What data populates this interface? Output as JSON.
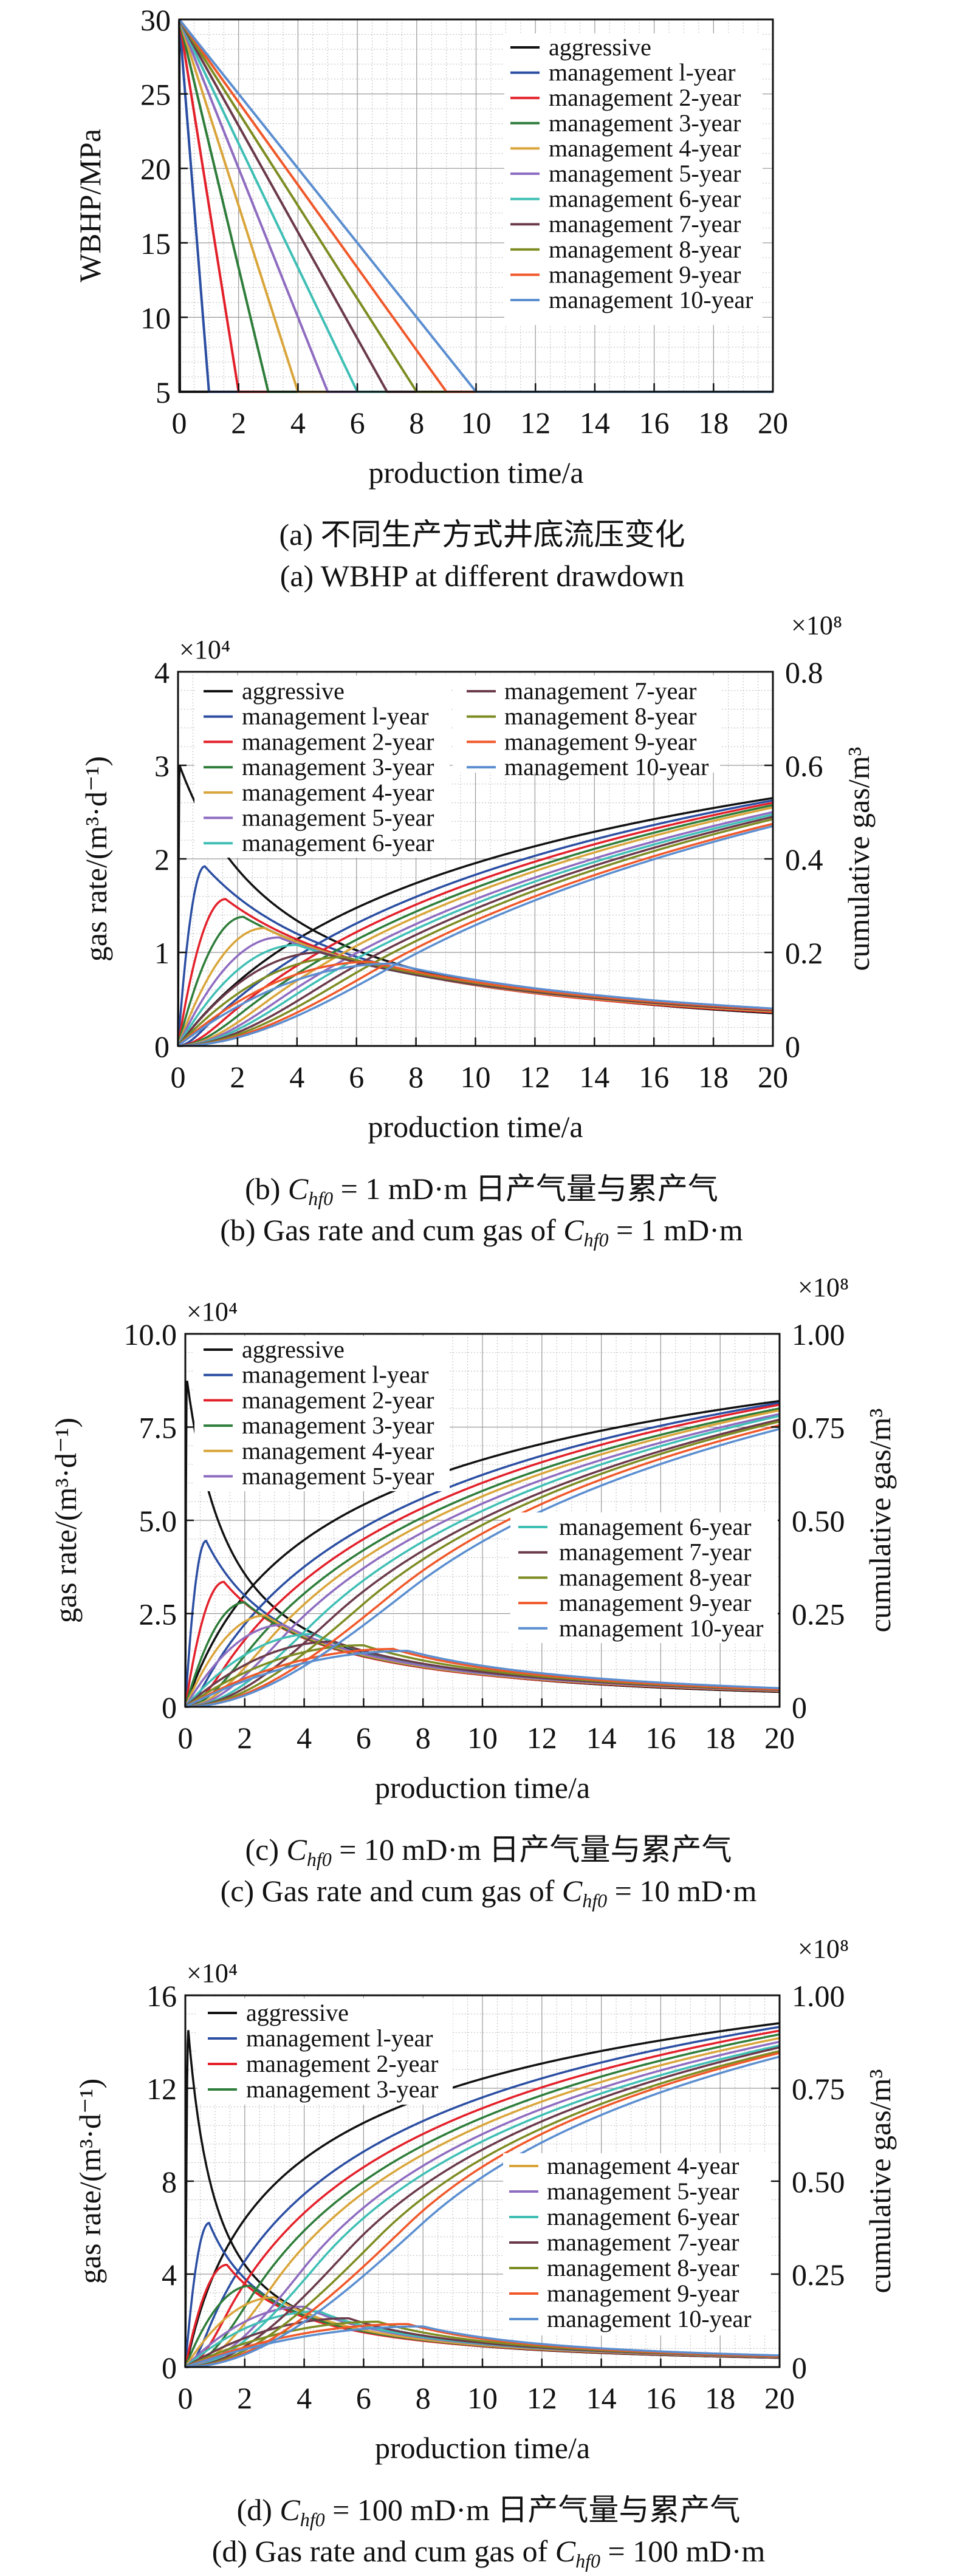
{
  "series_colors": [
    "#111111",
    "#2b4ea2",
    "#e3202a",
    "#2e7d3a",
    "#d9a53a",
    "#8e6cc0",
    "#3fbfb5",
    "#6b3a4a",
    "#7d8c22",
    "#f0582a",
    "#5b8ed0"
  ],
  "series_names": [
    "aggressive",
    "management l-year",
    "management 2-year",
    "management 3-year",
    "management 4-year",
    "management 5-year",
    "management 6-year",
    "management 7-year",
    "management 8-year",
    "management 9-year",
    "management 10-year"
  ],
  "chart_data": [
    {
      "type": "line",
      "xlabel": "production time/a",
      "ylabel": "WBHP/MPa",
      "xlim": [
        0,
        20
      ],
      "xticks": [
        "0",
        "2",
        "4",
        "6",
        "8",
        "10",
        "12",
        "14",
        "16",
        "18",
        "20"
      ],
      "ylim": [
        5,
        30
      ],
      "yticks": [
        "5",
        "10",
        "15",
        "20",
        "25",
        "30"
      ],
      "grid": true,
      "legend": "top-right",
      "caption_cn": "(a) 不同生产方式井底流压变化",
      "caption_en": "(a) WBHP at different drawdown",
      "series": [
        {
          "name": "aggressive",
          "points": [
            [
              0,
              30
            ],
            [
              0.02,
              5
            ],
            [
              20,
              5
            ]
          ]
        },
        {
          "name": "management l-year",
          "points": [
            [
              0,
              30
            ],
            [
              1,
              5
            ],
            [
              20,
              5
            ]
          ]
        },
        {
          "name": "management 2-year",
          "points": [
            [
              0,
              30
            ],
            [
              2,
              5
            ],
            [
              20,
              5
            ]
          ]
        },
        {
          "name": "management 3-year",
          "points": [
            [
              0,
              30
            ],
            [
              3,
              5
            ],
            [
              20,
              5
            ]
          ]
        },
        {
          "name": "management 4-year",
          "points": [
            [
              0,
              30
            ],
            [
              4,
              5
            ],
            [
              20,
              5
            ]
          ]
        },
        {
          "name": "management 5-year",
          "points": [
            [
              0,
              30
            ],
            [
              5,
              5
            ],
            [
              20,
              5
            ]
          ]
        },
        {
          "name": "management 6-year",
          "points": [
            [
              0,
              30
            ],
            [
              6,
              5
            ],
            [
              20,
              5
            ]
          ]
        },
        {
          "name": "management 7-year",
          "points": [
            [
              0,
              30
            ],
            [
              7,
              5
            ],
            [
              20,
              5
            ]
          ]
        },
        {
          "name": "management 8-year",
          "points": [
            [
              0,
              30
            ],
            [
              8,
              5
            ],
            [
              20,
              5
            ]
          ]
        },
        {
          "name": "management 9-year",
          "points": [
            [
              0,
              30
            ],
            [
              9,
              5
            ],
            [
              20,
              5
            ]
          ]
        },
        {
          "name": "management 10-year",
          "points": [
            [
              0,
              30
            ],
            [
              10,
              5
            ],
            [
              20,
              5
            ]
          ]
        }
      ]
    },
    {
      "type": "line",
      "xlabel": "production time/a",
      "ylabel": "gas rate/(m³·d⁻¹)",
      "y2label": "cumulative gas/m³",
      "y_multiplier": "×10⁴",
      "y2_multiplier": "×10⁸",
      "xlim": [
        0,
        20
      ],
      "xticks": [
        "0",
        "2",
        "4",
        "6",
        "8",
        "10",
        "12",
        "14",
        "16",
        "18",
        "20"
      ],
      "ylim": [
        0,
        4
      ],
      "yticks": [
        "0",
        "1",
        "2",
        "3",
        "4"
      ],
      "y2lim": [
        0,
        0.8
      ],
      "y2ticks": [
        "0",
        "0.2",
        "0.4",
        "0.6",
        "0.8"
      ],
      "grid": true,
      "legend": "top (two columns)",
      "caption_cn": {
        "prefix": "(b) ",
        "sym": "C",
        "sub": "hf0",
        "suffix": " = 1 mD·m 日产气量与累产气"
      },
      "caption_en": {
        "prefix": "(b) Gas rate and cum gas of ",
        "sym": "C",
        "sub": "hf0",
        "suffix": " = 1 mD·m"
      },
      "series": [
        {
          "name": "aggressive",
          "peak_time": 0.05,
          "peak_rate": 3.0,
          "rate_at_20": 0.35,
          "cum_at_20": 0.53
        },
        {
          "name": "management l-year",
          "peak_time": 0.9,
          "peak_rate": 1.92,
          "rate_at_20": 0.36,
          "cum_at_20": 0.525
        },
        {
          "name": "management 2-year",
          "peak_time": 1.6,
          "peak_rate": 1.57,
          "rate_at_20": 0.36,
          "cum_at_20": 0.52
        },
        {
          "name": "management 3-year",
          "peak_time": 2.2,
          "peak_rate": 1.38,
          "rate_at_20": 0.37,
          "cum_at_20": 0.515
        },
        {
          "name": "management 4-year",
          "peak_time": 2.9,
          "peak_rate": 1.26,
          "rate_at_20": 0.37,
          "cum_at_20": 0.51
        },
        {
          "name": "management 5-year",
          "peak_time": 3.4,
          "peak_rate": 1.16,
          "rate_at_20": 0.38,
          "cum_at_20": 0.5
        },
        {
          "name": "management 6-year",
          "peak_time": 4.0,
          "peak_rate": 1.08,
          "rate_at_20": 0.38,
          "cum_at_20": 0.495
        },
        {
          "name": "management 7-year",
          "peak_time": 4.8,
          "peak_rate": 1.0,
          "rate_at_20": 0.38,
          "cum_at_20": 0.49
        },
        {
          "name": "management 8-year",
          "peak_time": 5.6,
          "peak_rate": 0.95,
          "rate_at_20": 0.39,
          "cum_at_20": 0.485
        },
        {
          "name": "management 9-year",
          "peak_time": 6.5,
          "peak_rate": 0.9,
          "rate_at_20": 0.39,
          "cum_at_20": 0.475
        },
        {
          "name": "management 10-year",
          "peak_time": 7.2,
          "peak_rate": 0.88,
          "rate_at_20": 0.4,
          "cum_at_20": 0.47
        }
      ]
    },
    {
      "type": "line",
      "xlabel": "production time/a",
      "ylabel": "gas rate/(m³·d⁻¹)",
      "y2label": "cumulative gas/m³",
      "y_multiplier": "×10⁴",
      "y2_multiplier": "×10⁸",
      "xlim": [
        0,
        20
      ],
      "xticks": [
        "0",
        "2",
        "4",
        "6",
        "8",
        "10",
        "12",
        "14",
        "16",
        "18",
        "20"
      ],
      "ylim": [
        0,
        10
      ],
      "yticks": [
        "0",
        "2.5",
        "5.0",
        "7.5",
        "10.0"
      ],
      "y2lim": [
        0,
        1.0
      ],
      "y2ticks": [
        "0",
        "0.25",
        "0.50",
        "0.75",
        "1.00"
      ],
      "grid": true,
      "legend": "top-left and right",
      "caption_cn": {
        "prefix": "(c) ",
        "sym": "C",
        "sub": "hf0",
        "suffix": " = 10 mD·m 日产气量与累产气"
      },
      "caption_en": {
        "prefix": "(c) Gas rate and cum gas of ",
        "sym": "C",
        "sub": "hf0",
        "suffix": " = 10 mD·m"
      },
      "series": [
        {
          "name": "aggressive",
          "peak_time": 0.05,
          "peak_rate": 8.8,
          "rate_at_20": 0.4,
          "cum_at_20": 0.82
        },
        {
          "name": "management l-year",
          "peak_time": 0.7,
          "peak_rate": 4.45,
          "rate_at_20": 0.42,
          "cum_at_20": 0.815
        },
        {
          "name": "management 2-year",
          "peak_time": 1.3,
          "peak_rate": 3.35,
          "rate_at_20": 0.42,
          "cum_at_20": 0.81
        },
        {
          "name": "management 3-year",
          "peak_time": 2.0,
          "peak_rate": 2.8,
          "rate_at_20": 0.43,
          "cum_at_20": 0.8
        },
        {
          "name": "management 4-year",
          "peak_time": 2.7,
          "peak_rate": 2.45,
          "rate_at_20": 0.43,
          "cum_at_20": 0.795
        },
        {
          "name": "management 5-year",
          "peak_time": 3.3,
          "peak_rate": 2.2,
          "rate_at_20": 0.44,
          "cum_at_20": 0.785
        },
        {
          "name": "management 6-year",
          "peak_time": 4.3,
          "peak_rate": 1.95,
          "rate_at_20": 0.45,
          "cum_at_20": 0.78
        },
        {
          "name": "management 7-year",
          "peak_time": 5.0,
          "peak_rate": 1.75,
          "rate_at_20": 0.45,
          "cum_at_20": 0.77
        },
        {
          "name": "management 8-year",
          "peak_time": 6.0,
          "peak_rate": 1.65,
          "rate_at_20": 0.46,
          "cum_at_20": 0.765
        },
        {
          "name": "management 9-year",
          "peak_time": 7.0,
          "peak_rate": 1.55,
          "rate_at_20": 0.47,
          "cum_at_20": 0.755
        },
        {
          "name": "management 10-year",
          "peak_time": 7.5,
          "peak_rate": 1.5,
          "rate_at_20": 0.5,
          "cum_at_20": 0.745
        }
      ]
    },
    {
      "type": "line",
      "xlabel": "production time/a",
      "ylabel": "gas rate/(m³·d⁻¹)",
      "y2label": "cumulative gas/m³",
      "y_multiplier": "×10⁴",
      "y2_multiplier": "×10⁸",
      "xlim": [
        0,
        20
      ],
      "xticks": [
        "0",
        "2",
        "4",
        "6",
        "8",
        "10",
        "12",
        "14",
        "16",
        "18",
        "20"
      ],
      "ylim": [
        0,
        16
      ],
      "yticks": [
        "0",
        "4",
        "8",
        "12",
        "16"
      ],
      "y2lim": [
        0,
        1.0
      ],
      "y2ticks": [
        "0",
        "0.25",
        "0.50",
        "0.75",
        "1.00"
      ],
      "grid": true,
      "legend": "top-left and right",
      "caption_cn": {
        "prefix": "(d) ",
        "sym": "C",
        "sub": "hf0",
        "suffix": " = 100 mD·m 日产气量与累产气"
      },
      "caption_en": {
        "prefix": "(d) Gas rate and cum gas of ",
        "sym": "C",
        "sub": "hf0",
        "suffix": " = 100 mD·m"
      },
      "series": [
        {
          "name": "aggressive",
          "peak_time": 0.1,
          "peak_rate": 14.5,
          "rate_at_20": 0.4,
          "cum_at_20": 0.925
        },
        {
          "name": "management l-year",
          "peak_time": 0.8,
          "peak_rate": 6.2,
          "rate_at_20": 0.42,
          "cum_at_20": 0.915
        },
        {
          "name": "management 2-year",
          "peak_time": 1.4,
          "peak_rate": 4.4,
          "rate_at_20": 0.42,
          "cum_at_20": 0.905
        },
        {
          "name": "management 3-year",
          "peak_time": 2.2,
          "peak_rate": 3.5,
          "rate_at_20": 0.43,
          "cum_at_20": 0.895
        },
        {
          "name": "management 4-year",
          "peak_time": 3.0,
          "peak_rate": 3.0,
          "rate_at_20": 0.43,
          "cum_at_20": 0.885
        },
        {
          "name": "management 5-year",
          "peak_time": 4.0,
          "peak_rate": 2.6,
          "rate_at_20": 0.44,
          "cum_at_20": 0.875
        },
        {
          "name": "management 6-year",
          "peak_time": 4.5,
          "peak_rate": 2.4,
          "rate_at_20": 0.45,
          "cum_at_20": 0.865
        },
        {
          "name": "management 7-year",
          "peak_time": 5.5,
          "peak_rate": 2.1,
          "rate_at_20": 0.45,
          "cum_at_20": 0.86
        },
        {
          "name": "management 8-year",
          "peak_time": 6.5,
          "peak_rate": 1.95,
          "rate_at_20": 0.46,
          "cum_at_20": 0.85
        },
        {
          "name": "management 9-year",
          "peak_time": 7.5,
          "peak_rate": 1.85,
          "rate_at_20": 0.47,
          "cum_at_20": 0.845
        },
        {
          "name": "management 10-year",
          "peak_time": 8.0,
          "peak_rate": 1.75,
          "rate_at_20": 0.5,
          "cum_at_20": 0.835
        }
      ]
    }
  ]
}
